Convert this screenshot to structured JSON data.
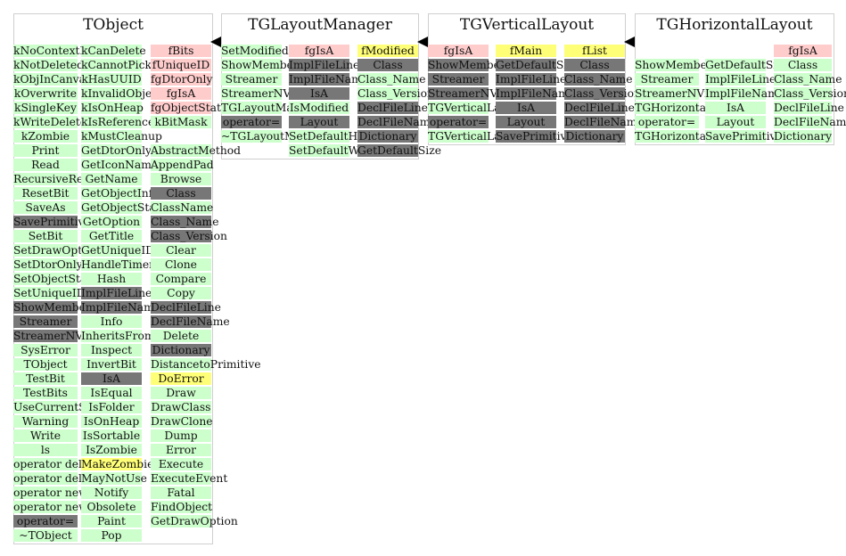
{
  "classes": [
    {
      "name": "TObject",
      "columns": [
        [
          "kNoContextMenu",
          "kNotDeleted",
          "kObjInCanvas",
          "kOverwrite",
          "kSingleKey",
          "kWriteDelete",
          "kZombie",
          "Print",
          "Read",
          "RecursiveRemove",
          "ResetBit",
          "SaveAs",
          {
            "t": "SavePrimitive",
            "k": "inherited"
          },
          "SetBit",
          "SetDrawOption",
          "SetDtorOnly",
          "SetObjectStat",
          "SetUniqueID",
          {
            "t": "ShowMembers",
            "k": "inherited"
          },
          {
            "t": "Streamer",
            "k": "inherited"
          },
          {
            "t": "StreamerNVirtual",
            "k": "inherited"
          },
          "SysError",
          "TObject",
          "TestBit",
          "TestBits",
          "UseCurrentStyle",
          "Warning",
          "Write",
          "ls",
          "operator delete",
          "operator delete[]",
          "operator new",
          "operator new[]",
          {
            "t": "operator=",
            "k": "inherited"
          },
          "~TObject"
        ],
        [
          "kCanDelete",
          "kCannotPick",
          "kHasUUID",
          "kInvalidObject",
          "kIsOnHeap",
          "kIsReferenced",
          "kMustCleanup",
          "GetDtorOnly",
          "GetIconName",
          "GetName",
          "GetObjectInfo",
          "GetObjectStat",
          "GetOption",
          "GetTitle",
          "GetUniqueID",
          "HandleTimer",
          "Hash",
          {
            "t": "ImplFileLine",
            "k": "inherited"
          },
          {
            "t": "ImplFileName",
            "k": "inherited"
          },
          "Info",
          "InheritsFrom",
          "Inspect",
          "InvertBit",
          {
            "t": "IsA",
            "k": "inherited"
          },
          "IsEqual",
          "IsFolder",
          "IsOnHeap",
          "IsSortable",
          "IsZombie",
          {
            "t": "MakeZombie",
            "k": "hl"
          },
          "MayNotUse",
          "Notify",
          "Obsolete",
          "Paint",
          "Pop"
        ],
        [
          {
            "t": "fBits",
            "k": "dm"
          },
          {
            "t": "fUniqueID",
            "k": "dm"
          },
          {
            "t": "fgDtorOnly",
            "k": "dm"
          },
          {
            "t": "fgIsA",
            "k": "dm"
          },
          {
            "t": "fgObjectStat",
            "k": "dm"
          },
          {
            "t": "kBitMask",
            "k": "member"
          },
          {
            "t": "",
            "k": "none"
          },
          "AbstractMethod",
          "AppendPad",
          "Browse",
          {
            "t": "Class",
            "k": "inherited"
          },
          "ClassName",
          {
            "t": "Class_Name",
            "k": "inherited"
          },
          {
            "t": "Class_Version",
            "k": "inherited"
          },
          "Clear",
          "Clone",
          "Compare",
          "Copy",
          {
            "t": "DeclFileLine",
            "k": "inherited"
          },
          {
            "t": "DeclFileName",
            "k": "inherited"
          },
          "Delete",
          {
            "t": "Dictionary",
            "k": "inherited"
          },
          "DistancetoPrimitive",
          {
            "t": "DoError",
            "k": "hl"
          },
          "Draw",
          "DrawClass",
          "DrawClone",
          "Dump",
          "Error",
          "Execute",
          "ExecuteEvent",
          "Fatal",
          "FindObject",
          "GetDrawOption"
        ]
      ]
    },
    {
      "name": "TGLayoutManager",
      "columns": [
        [
          "SetModified",
          "ShowMembers",
          "Streamer",
          "StreamerNVirtual",
          "TGLayoutManager",
          {
            "t": "operator=",
            "k": "inherited"
          },
          "~TGLayoutManager"
        ],
        [
          {
            "t": "fgIsA",
            "k": "dm"
          },
          {
            "t": "ImplFileLine",
            "k": "inherited"
          },
          {
            "t": "ImplFileName",
            "k": "inherited"
          },
          {
            "t": "IsA",
            "k": "inherited"
          },
          "IsModified",
          {
            "t": "Layout",
            "k": "inherited"
          },
          "SetDefaultHeight",
          "SetDefaultWidth"
        ],
        [
          {
            "t": "fModified",
            "k": "dmv"
          },
          {
            "t": "Class",
            "k": "inherited"
          },
          "Class_Name",
          "Class_Version",
          {
            "t": "DeclFileLine",
            "k": "inherited"
          },
          {
            "t": "DeclFileName",
            "k": "inherited"
          },
          {
            "t": "Dictionary",
            "k": "inherited"
          },
          {
            "t": "GetDefaultSize",
            "k": "inherited"
          }
        ]
      ]
    },
    {
      "name": "TGVerticalLayout",
      "columns": [
        [
          {
            "t": "fgIsA",
            "k": "dm"
          },
          {
            "t": "ShowMembers",
            "k": "inherited"
          },
          {
            "t": "Streamer",
            "k": "inherited"
          },
          {
            "t": "StreamerNVirtual",
            "k": "inherited"
          },
          "TGVerticalLayout",
          {
            "t": "operator=",
            "k": "inherited"
          },
          "TGVerticalLayout"
        ],
        [
          {
            "t": "fMain",
            "k": "dmv"
          },
          {
            "t": "GetDefaultSize",
            "k": "inherited"
          },
          {
            "t": "ImplFileLine",
            "k": "inherited"
          },
          {
            "t": "ImplFileName",
            "k": "inherited"
          },
          {
            "t": "IsA",
            "k": "inherited"
          },
          {
            "t": "Layout",
            "k": "inherited"
          },
          {
            "t": "SavePrimitive",
            "k": "inherited"
          }
        ],
        [
          {
            "t": "fList",
            "k": "dmv"
          },
          {
            "t": "Class",
            "k": "inherited"
          },
          {
            "t": "Class_Name",
            "k": "inherited"
          },
          {
            "t": "Class_Version",
            "k": "inherited"
          },
          {
            "t": "DeclFileLine",
            "k": "inherited"
          },
          {
            "t": "DeclFileName",
            "k": "inherited"
          },
          {
            "t": "Dictionary",
            "k": "inherited"
          }
        ]
      ]
    },
    {
      "name": "TGHorizontalLayout",
      "columns": [
        [
          "ShowMembers",
          "Streamer",
          "StreamerNVirtual",
          "TGHorizontalLayout",
          "operator=",
          "TGHorizontalLayout"
        ],
        [
          "GetDefaultSize",
          "ImplFileLine",
          "ImplFileName",
          "IsA",
          "Layout",
          "SavePrimitive"
        ],
        [
          {
            "t": "fgIsA",
            "k": "dm"
          },
          "Class",
          "Class_Name",
          "Class_Version",
          "DeclFileLine",
          "DeclFileName",
          "Dictionary"
        ]
      ]
    }
  ],
  "colors": {
    "member": "#ccffcc",
    "inherited": "#777777",
    "data_member": "#ffcccc",
    "highlight": "#ffff77"
  }
}
